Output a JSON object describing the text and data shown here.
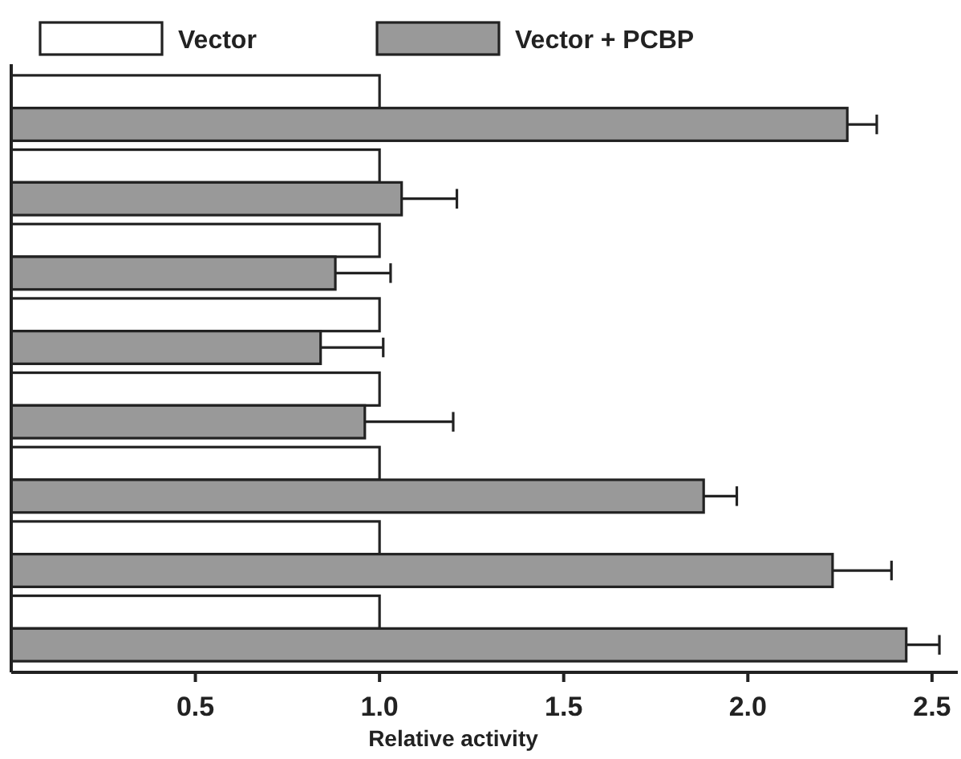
{
  "chart_data": {
    "type": "bar",
    "orientation": "horizontal",
    "xlabel": "Relative activity",
    "categories": [
      null,
      null,
      null,
      null,
      null,
      null,
      null,
      null
    ],
    "xlim": [
      0,
      2.57
    ],
    "xticks": [
      {
        "value": 0.5,
        "label": "0.5"
      },
      {
        "value": 1,
        "label": "1.0"
      },
      {
        "value": 1.5,
        "label": "1.5"
      },
      {
        "value": 2,
        "label": "2.0"
      },
      {
        "value": 2.5,
        "label": "2.5"
      }
    ],
    "legend": "top",
    "grid": false,
    "series": [
      {
        "name": "Vector",
        "color": "#ffffff",
        "values": [
          1,
          1,
          1,
          1,
          1,
          1,
          1,
          1
        ]
      },
      {
        "name": "Vector + PCBP",
        "color": "#999999",
        "values": [
          2.27,
          1.06,
          0.88,
          0.84,
          0.96,
          1.88,
          2.23,
          2.43
        ],
        "errors": [
          [
            2.27,
            2.35
          ],
          [
            1.06,
            1.21
          ],
          [
            0.88,
            1.03
          ],
          [
            0.84,
            1.01
          ],
          [
            0.96,
            1.2
          ],
          [
            1.88,
            1.97
          ],
          [
            2.23,
            2.39
          ],
          [
            2.43,
            2.52
          ]
        ]
      }
    ]
  }
}
